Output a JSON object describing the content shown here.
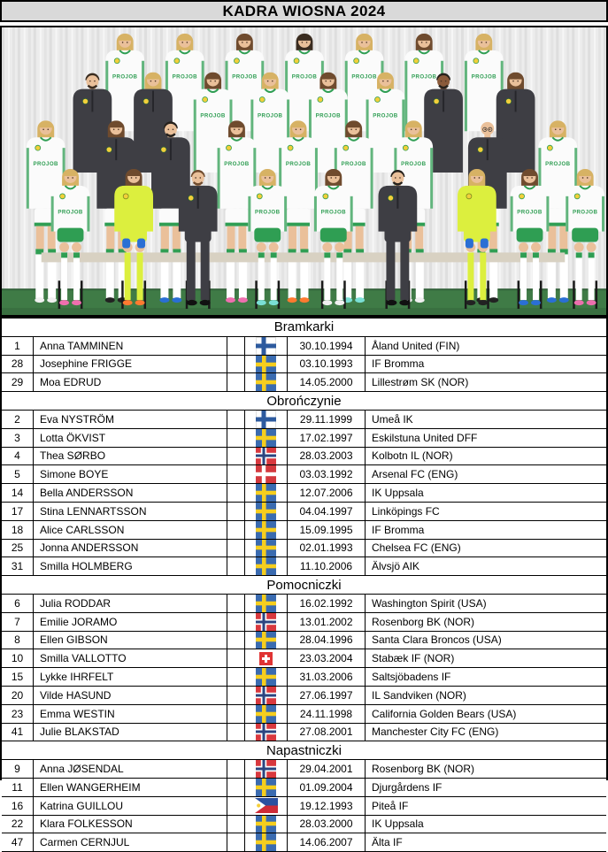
{
  "title": "KADRA WIOSNA 2024",
  "photo": {
    "jersey_sponsor": "PROJOB"
  },
  "colors": {
    "title_bg": "#d9d9d9",
    "table_border": "#000000",
    "jersey_green": "#2f9e53",
    "gk_neon": "#dcef3e",
    "staff_charcoal": "#3e3e44",
    "turf_green": "#3f7b46",
    "crest_yellow": "#f2cf3a",
    "flags": {
      "fin": {
        "bg": "#ffffff",
        "cross": "#2d5a9e"
      },
      "swe": {
        "bg": "#3a6bb0",
        "cross": "#f6ce1e"
      },
      "nor": {
        "bg": "#d8383e",
        "cross": "#ffffff",
        "inner": "#2b4580"
      },
      "den": {
        "bg": "#d3383d",
        "cross": "#ffffff"
      },
      "sui": {
        "bg": "#e03434",
        "cross": "#ffffff"
      },
      "phi": {
        "blue": "#2a50a0",
        "red": "#ce2b37",
        "white": "#ffffff",
        "sun": "#f5cf3a"
      }
    }
  },
  "table": {
    "sections": [
      {
        "label": "Bramkarki",
        "rows": [
          {
            "number": "1",
            "name": "Anna TAMMINEN",
            "flag": "fin",
            "birthdate": "30.10.1994",
            "club": "Åland United (FIN)"
          },
          {
            "number": "28",
            "name": "Josephine FRIGGE",
            "flag": "swe",
            "birthdate": "03.10.1993",
            "club": "IF Bromma"
          },
          {
            "number": "29",
            "name": "Moa EDRUD",
            "flag": "swe",
            "birthdate": "14.05.2000",
            "club": "Lillestrøm SK (NOR)"
          }
        ]
      },
      {
        "label": "Obrończynie",
        "rows": [
          {
            "number": "2",
            "name": "Eva NYSTRÖM",
            "flag": "fin",
            "birthdate": "29.11.1999",
            "club": "Umeå IK"
          },
          {
            "number": "3",
            "name": "Lotta ÖKVIST",
            "flag": "swe",
            "birthdate": "17.02.1997",
            "club": "Eskilstuna United DFF"
          },
          {
            "number": "4",
            "name": "Thea SØRBO",
            "flag": "nor",
            "birthdate": "28.03.2003",
            "club": "Kolbotn IL (NOR)"
          },
          {
            "number": "5",
            "name": "Simone BOYE",
            "flag": "den",
            "birthdate": "03.03.1992",
            "club": "Arsenal FC (ENG)"
          },
          {
            "number": "14",
            "name": "Bella ANDERSSON",
            "flag": "swe",
            "birthdate": "12.07.2006",
            "club": "IK Uppsala"
          },
          {
            "number": "17",
            "name": "Stina LENNARTSSON",
            "flag": "swe",
            "birthdate": "04.04.1997",
            "club": "Linköpings FC"
          },
          {
            "number": "18",
            "name": "Alice CARLSSON",
            "flag": "swe",
            "birthdate": "15.09.1995",
            "club": "IF Bromma"
          },
          {
            "number": "25",
            "name": "Jonna ANDERSSON",
            "flag": "swe",
            "birthdate": "02.01.1993",
            "club": "Chelsea FC (ENG)"
          },
          {
            "number": "31",
            "name": "Smilla HOLMBERG",
            "flag": "swe",
            "birthdate": "11.10.2006",
            "club": "Älvsjö AIK"
          }
        ]
      },
      {
        "label": "Pomocniczki",
        "rows": [
          {
            "number": "6",
            "name": "Julia RODDAR",
            "flag": "swe",
            "birthdate": "16.02.1992",
            "club": "Washington Spirit (USA)"
          },
          {
            "number": "7",
            "name": "Emilie JORAMO",
            "flag": "nor",
            "birthdate": "13.01.2002",
            "club": "Rosenborg BK (NOR)"
          },
          {
            "number": "8",
            "name": "Ellen GIBSON",
            "flag": "swe",
            "birthdate": "28.04.1996",
            "club": "Santa Clara Broncos (USA)"
          },
          {
            "number": "10",
            "name": "Smilla VALLOTTO",
            "flag": "sui",
            "birthdate": "23.03.2004",
            "club": "Stabæk IF (NOR)"
          },
          {
            "number": "15",
            "name": "Lykke IHRFELT",
            "flag": "swe",
            "birthdate": "31.03.2006",
            "club": "Saltsjöbadens IF"
          },
          {
            "number": "20",
            "name": "Vilde HASUND",
            "flag": "nor",
            "birthdate": "27.06.1997",
            "club": "IL Sandviken (NOR)"
          },
          {
            "number": "23",
            "name": "Emma WESTIN",
            "flag": "swe",
            "birthdate": "24.11.1998",
            "club": "California Golden Bears (USA)"
          },
          {
            "number": "41",
            "name": "Julie BLAKSTAD",
            "flag": "nor",
            "birthdate": "27.08.2001",
            "club": "Manchester City FC (ENG)"
          }
        ]
      },
      {
        "label": "Napastniczki",
        "rows": [
          {
            "number": "9",
            "name": "Anna JØSENDAL",
            "flag": "nor",
            "birthdate": "29.04.2001",
            "club": "Rosenborg BK (NOR)"
          },
          {
            "number": "11",
            "name": "Ellen WANGERHEIM",
            "flag": "swe",
            "birthdate": "01.09.2004",
            "club": "Djurgårdens IF"
          },
          {
            "number": "16",
            "name": "Katrina GUILLOU",
            "flag": "phi",
            "birthdate": "19.12.1993",
            "club": "Piteå IF"
          },
          {
            "number": "22",
            "name": "Klara FOLKESSON",
            "flag": "swe",
            "birthdate": "28.03.2000",
            "club": "IK Uppsala"
          },
          {
            "number": "47",
            "name": "Carmen CERNJUL",
            "flag": "swe",
            "birthdate": "14.06.2007",
            "club": "Älta IF"
          }
        ]
      }
    ]
  }
}
